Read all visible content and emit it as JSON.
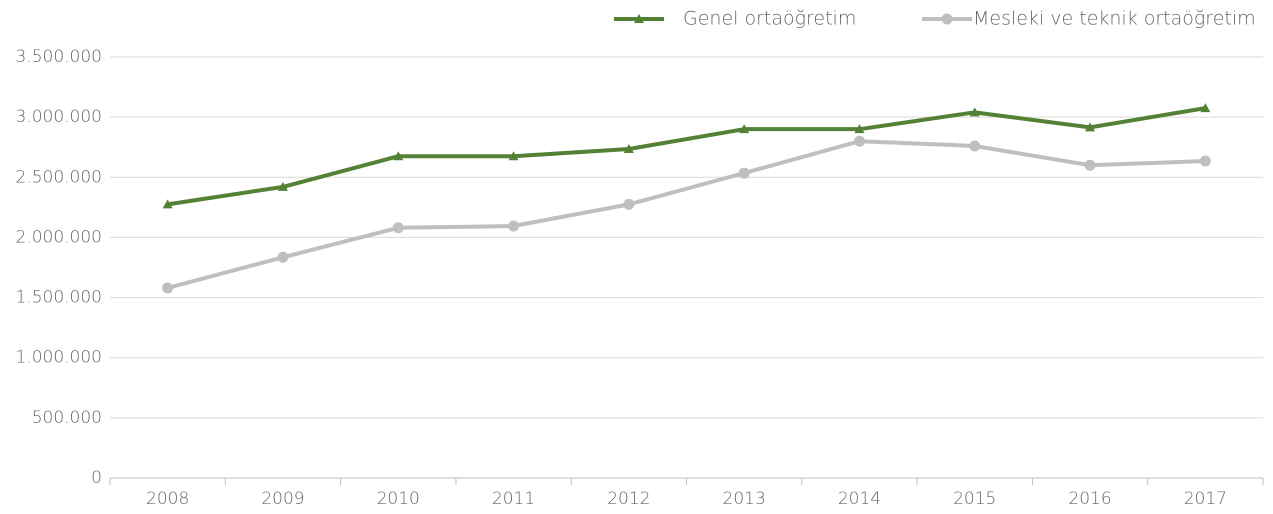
{
  "chart_data": {
    "type": "line",
    "categories": [
      "2008",
      "2009",
      "2010",
      "2011",
      "2012",
      "2013",
      "2014",
      "2015",
      "2016",
      "2017"
    ],
    "series": [
      {
        "name": "Genel ortaöğretim",
        "color": "#538135",
        "marker": "triangle",
        "values": [
          2275000,
          2420000,
          2675000,
          2675000,
          2735000,
          2900000,
          2900000,
          3040000,
          2915000,
          3075000
        ]
      },
      {
        "name": "Mesleki ve teknik ortaöğretim",
        "color": "#bfbfbf",
        "marker": "circle",
        "values": [
          1580000,
          1835000,
          2080000,
          2095000,
          2275000,
          2535000,
          2800000,
          2760000,
          2600000,
          2635000
        ]
      }
    ],
    "ylim": [
      0,
      3500000
    ],
    "yticks": [
      0,
      {
        "value": 500000,
        "label": "500.000"
      },
      {
        "value": 1000000,
        "label": "1.000.000"
      },
      {
        "value": 1500000,
        "label": "1.500.000"
      },
      {
        "value": 2000000,
        "label": "2.000.000"
      },
      {
        "value": 2500000,
        "label": "2.500.000"
      },
      {
        "value": 3000000,
        "label": "3.000.000"
      },
      {
        "value": 3500000,
        "label": "3.500.000"
      }
    ],
    "grid": true,
    "legend": "top-right"
  }
}
